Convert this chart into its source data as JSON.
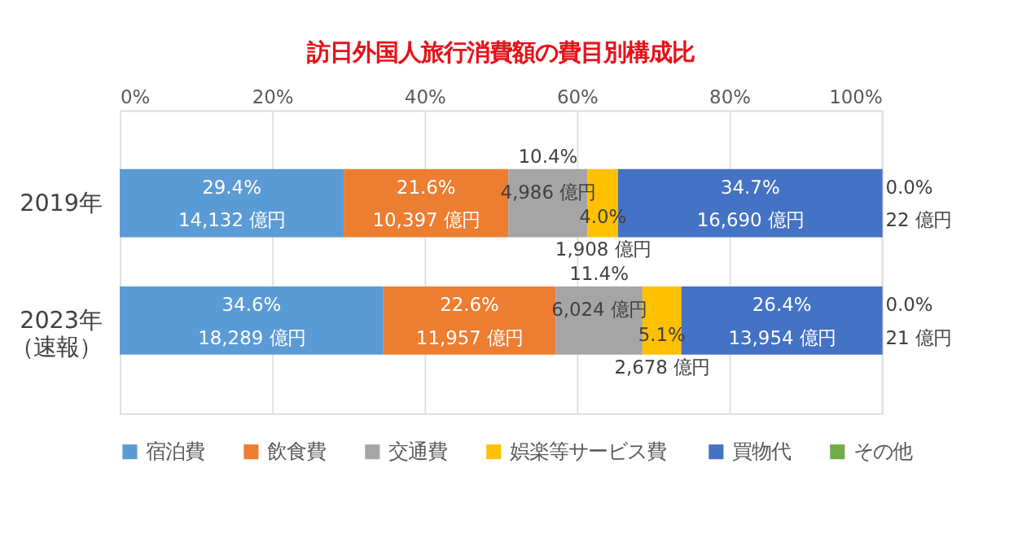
{
  "chart_data": {
    "type": "bar",
    "orientation": "horizontal",
    "stacked": true,
    "title": "訪日外国人旅行消費額の費目別構成比",
    "categories": [
      "2019年",
      "2023年（速報）"
    ],
    "series": [
      {
        "name": "宿泊費",
        "color": "#5b9bd5",
        "values": [
          29.4,
          34.6
        ],
        "value_labels": [
          "29.4%\n14,132 億円",
          "34.6%\n18,289 億円"
        ]
      },
      {
        "name": "飲食費",
        "color": "#ed7d31",
        "values": [
          21.6,
          22.6
        ],
        "value_labels": [
          "21.6%\n10,397 億円",
          "22.6%\n11,957 億円"
        ]
      },
      {
        "name": "交通費",
        "color": "#a5a5a5",
        "values": [
          10.4,
          11.4
        ],
        "value_labels": [
          "10.4%\n4,986 億円",
          "11.4%\n6,024 億円"
        ]
      },
      {
        "name": "娯楽等サービス費",
        "color": "#ffc000",
        "values": [
          4.0,
          5.1
        ],
        "value_labels": [
          "4.0%\n1,908 億円",
          "5.1%\n2,678 億円"
        ]
      },
      {
        "name": "買物代",
        "color": "#4472c4",
        "values": [
          34.7,
          26.4
        ],
        "value_labels": [
          "34.7%\n16,690 億円",
          "26.4%\n13,954 億円"
        ]
      },
      {
        "name": "その他",
        "color": "#70ad47",
        "values": [
          0.0,
          0.0
        ],
        "value_labels": [
          "0.0%\n22 億円",
          "0.0%\n21 億円"
        ]
      }
    ],
    "xlim": [
      0,
      100
    ],
    "xticks": [
      {
        "value": 0,
        "label": "0%"
      },
      {
        "value": 20,
        "label": "20%"
      },
      {
        "value": 40,
        "label": "40%"
      },
      {
        "value": 60,
        "label": "60%"
      },
      {
        "value": 80,
        "label": "80%"
      },
      {
        "value": 100,
        "label": "100%"
      }
    ],
    "grid": "x",
    "legend": "bottom"
  }
}
